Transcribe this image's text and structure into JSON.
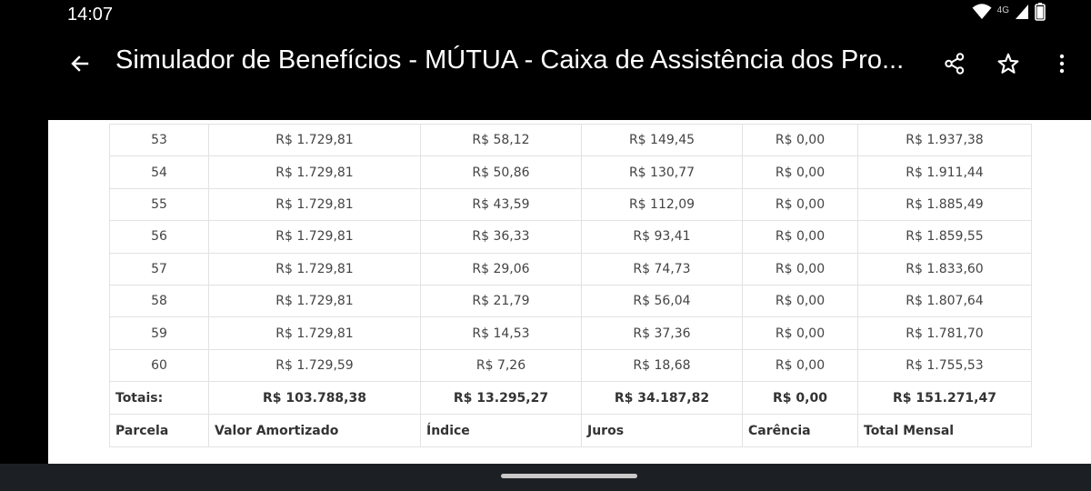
{
  "status_bar": {
    "time": "14:07",
    "network": "4G",
    "icons": [
      "wifi-icon",
      "signal-icon",
      "battery-icon"
    ]
  },
  "app_bar": {
    "title": "Simulador de Benefícios - MÚTUA - Caixa de Assistência dos Pro...",
    "icons": [
      "back-arrow-icon",
      "share-icon",
      "star-icon",
      "more-vert-icon"
    ]
  },
  "table": {
    "rows": [
      {
        "parcela": "53",
        "amortizado": "R$ 1.729,81",
        "indice": "R$ 58,12",
        "juros": "R$ 149,45",
        "carencia": "R$ 0,00",
        "total": "R$ 1.937,38"
      },
      {
        "parcela": "54",
        "amortizado": "R$ 1.729,81",
        "indice": "R$ 50,86",
        "juros": "R$ 130,77",
        "carencia": "R$ 0,00",
        "total": "R$ 1.911,44"
      },
      {
        "parcela": "55",
        "amortizado": "R$ 1.729,81",
        "indice": "R$ 43,59",
        "juros": "R$ 112,09",
        "carencia": "R$ 0,00",
        "total": "R$ 1.885,49"
      },
      {
        "parcela": "56",
        "amortizado": "R$ 1.729,81",
        "indice": "R$ 36,33",
        "juros": "R$ 93,41",
        "carencia": "R$ 0,00",
        "total": "R$ 1.859,55"
      },
      {
        "parcela": "57",
        "amortizado": "R$ 1.729,81",
        "indice": "R$ 29,06",
        "juros": "R$ 74,73",
        "carencia": "R$ 0,00",
        "total": "R$ 1.833,60"
      },
      {
        "parcela": "58",
        "amortizado": "R$ 1.729,81",
        "indice": "R$ 21,79",
        "juros": "R$ 56,04",
        "carencia": "R$ 0,00",
        "total": "R$ 1.807,64"
      },
      {
        "parcela": "59",
        "amortizado": "R$ 1.729,81",
        "indice": "R$ 14,53",
        "juros": "R$ 37,36",
        "carencia": "R$ 0,00",
        "total": "R$ 1.781,70"
      },
      {
        "parcela": "60",
        "amortizado": "R$ 1.729,59",
        "indice": "R$ 7,26",
        "juros": "R$ 18,68",
        "carencia": "R$ 0,00",
        "total": "R$ 1.755,53"
      }
    ],
    "totals": {
      "label": "Totais:",
      "amortizado": "R$ 103.788,38",
      "indice": "R$ 13.295,27",
      "juros": "R$ 34.187,82",
      "carencia": "R$ 0,00",
      "total": "R$ 151.271,47"
    },
    "headers": {
      "parcela": "Parcela",
      "amortizado": "Valor Amortizado",
      "indice": "Índice",
      "juros": "Juros",
      "carencia": "Carência",
      "total": "Total Mensal"
    }
  },
  "colors": {
    "app_bar_bg": "#000000",
    "content_bg": "#ffffff",
    "nav_bar_bg": "#1c1f24",
    "table_border": "#e2e2e2"
  }
}
